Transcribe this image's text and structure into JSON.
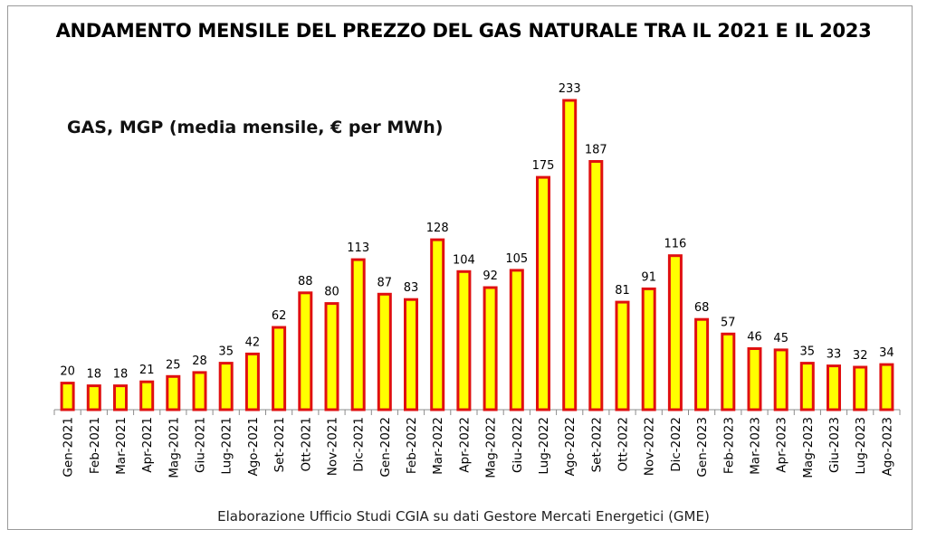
{
  "chart_data": {
    "type": "bar",
    "title": "ANDAMENTO MENSILE DEL PREZZO DEL GAS NATURALE TRA IL 2021 E IL 2023",
    "subtitle": "GAS, MGP (media mensile, € per MWh)",
    "source": "Elaborazione Ufficio Studi CGIA su dati Gestore Mercati Energetici (GME)",
    "categories": [
      "Gen-2021",
      "Feb-2021",
      "Mar-2021",
      "Apr-2021",
      "Mag-2021",
      "Giu-2021",
      "Lug-2021",
      "Ago-2021",
      "Set-2021",
      "Ott-2021",
      "Nov-2021",
      "Dic-2021",
      "Gen-2022",
      "Feb-2022",
      "Mar-2022",
      "Apr-2022",
      "Mag-2022",
      "Giu-2022",
      "Lug-2022",
      "Ago-2022",
      "Set-2022",
      "Ott-2022",
      "Nov-2022",
      "Dic-2022",
      "Gen-2023",
      "Feb-2023",
      "Mar-2023",
      "Apr-2023",
      "Mag-2023",
      "Giu-2023",
      "Lug-2023",
      "Ago-2023"
    ],
    "values": [
      20,
      18,
      18,
      21,
      25,
      28,
      35,
      42,
      62,
      88,
      80,
      113,
      87,
      83,
      128,
      104,
      92,
      105,
      175,
      233,
      187,
      81,
      91,
      116,
      68,
      57,
      46,
      45,
      35,
      33,
      32,
      34
    ],
    "ylim": [
      0,
      233
    ],
    "grid": false,
    "legend": "none",
    "colors": {
      "fill": "#ffff00",
      "stroke": "#e01010"
    }
  }
}
